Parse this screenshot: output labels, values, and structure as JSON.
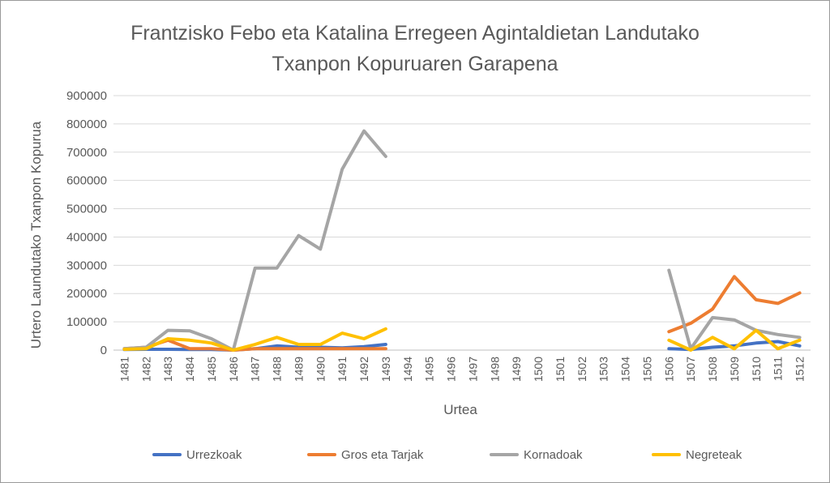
{
  "chart_data": {
    "type": "line",
    "title_lines": [
      "Frantzisko Febo eta Katalina Erregeen Agintaldietan Landutako",
      "Txanpon Kopuruaren Garapena"
    ],
    "xlabel": "Urtea",
    "ylabel": "Urtero Laundutako Txanpon Kopurua",
    "ylim": [
      0,
      900000
    ],
    "yticks": [
      "0",
      "100000",
      "200000",
      "300000",
      "400000",
      "500000",
      "600000",
      "700000",
      "800000",
      "900000"
    ],
    "yticks_values": [
      0,
      100000,
      200000,
      300000,
      400000,
      500000,
      600000,
      700000,
      800000,
      900000
    ],
    "categories": [
      "1481",
      "1482",
      "1483",
      "1484",
      "1485",
      "1486",
      "1487",
      "1488",
      "1489",
      "1490",
      "1491",
      "1492",
      "1493",
      "1494",
      "1495",
      "1496",
      "1497",
      "1498",
      "1499",
      "1500",
      "1501",
      "1502",
      "1503",
      "1504",
      "1505",
      "1506",
      "1507",
      "1508",
      "1509",
      "1510",
      "1511",
      "1512"
    ],
    "grid": true,
    "legend_position": "bottom",
    "series": [
      {
        "name": "Urrezkoak",
        "color": "#4472C4",
        "values": [
          2000,
          3000,
          3000,
          2000,
          2000,
          0,
          5000,
          15000,
          10000,
          10000,
          8000,
          12000,
          20000,
          null,
          null,
          null,
          null,
          null,
          null,
          null,
          null,
          null,
          null,
          null,
          null,
          5000,
          2000,
          10000,
          15000,
          25000,
          30000,
          15000
        ]
      },
      {
        "name": "Gros eta Tarjak",
        "color": "#ED7D31",
        "values": [
          5000,
          10000,
          35000,
          5000,
          5000,
          0,
          5000,
          5000,
          5000,
          5000,
          5000,
          5000,
          5000,
          null,
          null,
          null,
          null,
          null,
          null,
          null,
          null,
          null,
          null,
          null,
          null,
          65000,
          95000,
          145000,
          260000,
          178000,
          165000,
          202000
        ]
      },
      {
        "name": "Kornadoak",
        "color": "#A5A5A5",
        "values": [
          5000,
          10000,
          70000,
          68000,
          40000,
          0,
          290000,
          290000,
          405000,
          357000,
          640000,
          775000,
          685000,
          null,
          null,
          null,
          null,
          null,
          null,
          null,
          null,
          null,
          null,
          null,
          null,
          282000,
          5000,
          115000,
          107000,
          70000,
          55000,
          45000
        ]
      },
      {
        "name": "Negreteak",
        "color": "#FFC000",
        "values": [
          3000,
          5000,
          40000,
          35000,
          25000,
          0,
          20000,
          45000,
          20000,
          20000,
          60000,
          40000,
          75000,
          null,
          null,
          null,
          null,
          null,
          null,
          null,
          null,
          null,
          null,
          null,
          null,
          35000,
          0,
          45000,
          5000,
          70000,
          5000,
          35000
        ]
      }
    ]
  }
}
